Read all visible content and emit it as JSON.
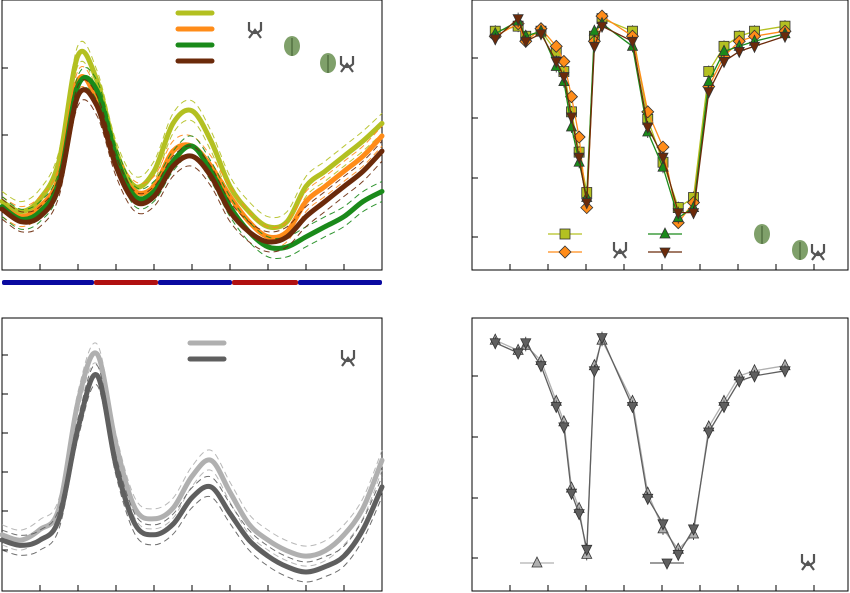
{
  "colors": {
    "yellow": "#b3c021",
    "orange": "#ff8c19",
    "green": "#1a8a1a",
    "brown": "#6b2a0a",
    "light_gray": "#b0b0b0",
    "dark_gray": "#5f5f5f",
    "bar_blue": "#0a0aa0",
    "bar_red": "#b01010"
  },
  "chart_data": [
    {
      "type": "line",
      "panel": "top-left",
      "xlim": [
        0,
        100
      ],
      "ylim": [
        0,
        100
      ],
      "grid": false,
      "legend_placement": "top-center",
      "x": [
        0,
        5,
        10,
        15,
        20,
        25,
        30,
        35,
        40,
        45,
        50,
        55,
        60,
        65,
        70,
        75,
        80,
        85,
        90,
        95,
        100
      ],
      "series": [
        {
          "color": "yellow",
          "values": [
            24,
            20,
            25,
            40,
            82,
            72,
            44,
            30,
            36,
            55,
            60,
            48,
            30,
            20,
            14,
            16,
            30,
            36,
            42,
            48,
            55
          ]
        },
        {
          "color": "orange",
          "values": [
            22,
            18,
            22,
            34,
            72,
            64,
            40,
            28,
            30,
            44,
            46,
            38,
            26,
            16,
            10,
            12,
            24,
            30,
            36,
            42,
            50
          ]
        },
        {
          "color": "green",
          "values": [
            22,
            17,
            20,
            32,
            70,
            68,
            42,
            26,
            28,
            40,
            46,
            36,
            22,
            12,
            6,
            6,
            10,
            14,
            18,
            24,
            28
          ]
        },
        {
          "color": "brown",
          "values": [
            21,
            16,
            18,
            30,
            66,
            62,
            38,
            24,
            26,
            38,
            42,
            34,
            20,
            12,
            8,
            10,
            18,
            24,
            30,
            36,
            44
          ]
        }
      ],
      "light_dark_bar": [
        "dark",
        "dark",
        "light",
        "dark",
        "light",
        "dark"
      ]
    },
    {
      "type": "line",
      "panel": "top-right",
      "xlim": [
        0,
        24
      ],
      "ylim": [
        0,
        100
      ],
      "grid": false,
      "legend_placement": "bottom-left",
      "markers": [
        "square",
        "diamond",
        "triangle-up",
        "triangle-down"
      ],
      "x": [
        1,
        2.5,
        3,
        4,
        5,
        5.5,
        6,
        6.5,
        7,
        7.5,
        8,
        10,
        11,
        12,
        13,
        14,
        15,
        16,
        17,
        18,
        20
      ],
      "series": [
        {
          "color": "yellow",
          "values": [
            90,
            92,
            88,
            90,
            82,
            74,
            58,
            42,
            26,
            88,
            95,
            90,
            55,
            38,
            20,
            24,
            74,
            84,
            88,
            90,
            92
          ]
        },
        {
          "color": "orange",
          "values": [
            88,
            93,
            86,
            91,
            84,
            78,
            64,
            48,
            20,
            86,
            96,
            88,
            58,
            44,
            14,
            22,
            68,
            80,
            86,
            88,
            90
          ]
        },
        {
          "color": "green",
          "values": [
            89,
            94,
            88,
            90,
            76,
            70,
            52,
            38,
            24,
            90,
            93,
            84,
            50,
            36,
            16,
            20,
            70,
            82,
            84,
            86,
            89
          ]
        },
        {
          "color": "brown",
          "values": [
            87,
            95,
            86,
            89,
            78,
            72,
            56,
            40,
            22,
            84,
            92,
            86,
            52,
            40,
            18,
            18,
            66,
            78,
            82,
            84,
            88
          ]
        }
      ]
    },
    {
      "type": "line",
      "panel": "bottom-left",
      "xlim": [
        0,
        100
      ],
      "ylim": [
        0,
        100
      ],
      "grid": false,
      "legend_placement": "top-center",
      "x": [
        0,
        5,
        10,
        15,
        20,
        25,
        30,
        35,
        40,
        45,
        50,
        55,
        60,
        65,
        70,
        75,
        80,
        85,
        90,
        95,
        100
      ],
      "series": [
        {
          "color": "light_gray",
          "values": [
            20,
            18,
            22,
            30,
            70,
            88,
            54,
            30,
            26,
            30,
            42,
            48,
            36,
            24,
            18,
            14,
            12,
            14,
            20,
            30,
            48
          ]
        },
        {
          "color": "dark_gray",
          "values": [
            18,
            16,
            18,
            26,
            60,
            80,
            46,
            24,
            20,
            24,
            34,
            38,
            28,
            18,
            12,
            8,
            6,
            8,
            12,
            22,
            38
          ]
        }
      ]
    },
    {
      "type": "line",
      "panel": "bottom-right",
      "xlim": [
        0,
        24
      ],
      "ylim": [
        0,
        100
      ],
      "grid": false,
      "legend_placement": "bottom-center",
      "markers": [
        "triangle-up",
        "triangle-down"
      ],
      "x": [
        1,
        2.5,
        3,
        4,
        5,
        5.5,
        6,
        6.5,
        7,
        7.5,
        8,
        10,
        11,
        12,
        13,
        14,
        15,
        16,
        17,
        18,
        20
      ],
      "series": [
        {
          "color": "light_gray",
          "values": [
            96,
            92,
            94,
            88,
            72,
            64,
            38,
            30,
            12,
            86,
            96,
            72,
            36,
            22,
            14,
            20,
            62,
            72,
            82,
            84,
            86
          ]
        },
        {
          "color": "dark_gray",
          "values": [
            95,
            91,
            95,
            86,
            70,
            62,
            36,
            28,
            14,
            84,
            97,
            70,
            34,
            24,
            12,
            22,
            60,
            70,
            80,
            82,
            84
          ]
        }
      ]
    }
  ]
}
